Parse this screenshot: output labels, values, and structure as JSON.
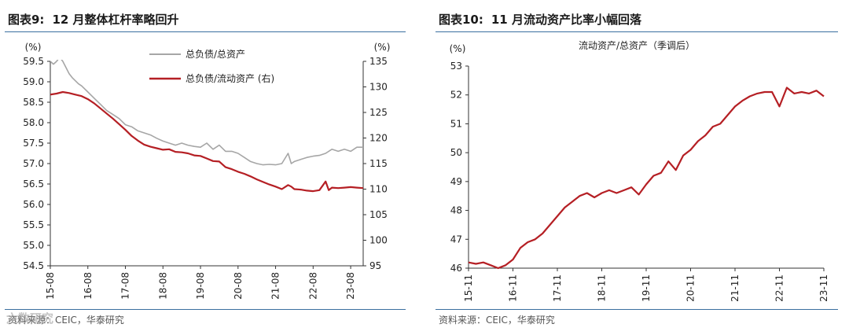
{
  "left": {
    "fig_label": "图表9:",
    "fig_title": "12 月整体杠杆率略回升",
    "source": "资料来源：CEIC，华泰研究",
    "watermark": "六数研究"
  },
  "right": {
    "fig_label": "图表10:",
    "fig_title": "11 月流动资产比率小幅回落",
    "source": "资料来源：CEIC，华泰研究"
  },
  "chart_data": [
    {
      "type": "line",
      "title": "",
      "left_unit": "(%)",
      "right_unit": "(%)",
      "x_ticks": [
        "15-08",
        "16-08",
        "17-08",
        "18-08",
        "19-08",
        "20-08",
        "21-08",
        "22-08",
        "23-08"
      ],
      "ylim_left": [
        54.5,
        59.5
      ],
      "yticks_left": [
        54.5,
        55.0,
        55.5,
        56.0,
        56.5,
        57.0,
        57.5,
        58.0,
        58.5,
        59.0,
        59.5
      ],
      "ylim_right": [
        95,
        135
      ],
      "yticks_right": [
        95,
        100,
        105,
        110,
        115,
        120,
        125,
        130,
        135
      ],
      "legend_position": "top-center",
      "series": [
        {
          "name": "总负债/总资产",
          "axis": "left",
          "color": "#a6a6a6",
          "x": [
            "2015-08",
            "2015-09",
            "2015-10",
            "2015-11",
            "2015-12",
            "2016-02",
            "2016-03",
            "2016-05",
            "2016-06",
            "2016-08",
            "2016-10",
            "2016-12",
            "2017-02",
            "2017-04",
            "2017-06",
            "2017-08",
            "2017-10",
            "2017-12",
            "2018-02",
            "2018-04",
            "2018-06",
            "2018-08",
            "2018-10",
            "2018-12",
            "2019-02",
            "2019-04",
            "2019-06",
            "2019-08",
            "2019-10",
            "2019-12",
            "2020-02",
            "2020-04",
            "2020-06",
            "2020-08",
            "2020-10",
            "2020-12",
            "2021-02",
            "2021-04",
            "2021-06",
            "2021-08",
            "2021-10",
            "2021-12",
            "2022-01",
            "2022-02",
            "2022-04",
            "2022-06",
            "2022-08",
            "2022-10",
            "2022-12",
            "2023-02",
            "2023-04",
            "2023-06",
            "2023-08",
            "2023-10",
            "2023-12"
          ],
          "values": [
            59.5,
            59.43,
            59.5,
            59.6,
            59.5,
            59.2,
            59.1,
            58.95,
            58.9,
            58.75,
            58.6,
            58.45,
            58.3,
            58.2,
            58.1,
            57.95,
            57.9,
            57.8,
            57.75,
            57.7,
            57.62,
            57.55,
            57.5,
            57.45,
            57.5,
            57.45,
            57.42,
            57.4,
            57.5,
            57.35,
            57.45,
            57.3,
            57.3,
            57.25,
            57.15,
            57.05,
            57.0,
            56.97,
            56.98,
            56.97,
            57.0,
            57.25,
            57.0,
            57.05,
            57.1,
            57.15,
            57.18,
            57.2,
            57.25,
            57.35,
            57.3,
            57.35,
            57.3,
            57.4,
            57.4
          ]
        },
        {
          "name": "总负债/流动资产 (右)",
          "axis": "right",
          "color": "#b51f24",
          "x": [
            "2015-08",
            "2015-10",
            "2015-12",
            "2016-02",
            "2016-04",
            "2016-06",
            "2016-08",
            "2016-10",
            "2016-12",
            "2017-02",
            "2017-04",
            "2017-06",
            "2017-08",
            "2017-10",
            "2017-12",
            "2018-02",
            "2018-04",
            "2018-06",
            "2018-08",
            "2018-10",
            "2018-12",
            "2019-02",
            "2019-04",
            "2019-06",
            "2019-08",
            "2019-10",
            "2019-12",
            "2020-02",
            "2020-04",
            "2020-06",
            "2020-08",
            "2020-10",
            "2020-12",
            "2021-02",
            "2021-04",
            "2021-06",
            "2021-08",
            "2021-10",
            "2021-12",
            "2022-01",
            "2022-02",
            "2022-04",
            "2022-06",
            "2022-08",
            "2022-10",
            "2022-12",
            "2023-01",
            "2023-02",
            "2023-04",
            "2023-06",
            "2023-08",
            "2023-10",
            "2023-12"
          ],
          "values": [
            128.5,
            128.7,
            129.0,
            128.8,
            128.5,
            128.2,
            127.6,
            126.8,
            125.8,
            124.8,
            123.8,
            122.7,
            121.6,
            120.4,
            119.5,
            118.7,
            118.3,
            118.0,
            117.7,
            117.8,
            117.3,
            117.2,
            117.0,
            116.6,
            116.5,
            116.0,
            115.5,
            115.4,
            114.3,
            113.9,
            113.4,
            113.0,
            112.5,
            111.9,
            111.4,
            110.9,
            110.5,
            110.0,
            110.8,
            110.5,
            110.0,
            109.9,
            109.7,
            109.6,
            109.8,
            111.5,
            109.8,
            110.3,
            110.2,
            110.3,
            110.4,
            110.3,
            110.2
          ]
        }
      ]
    },
    {
      "type": "line",
      "title": "流动资产/总资产（季调后）",
      "y_unit": "(%)",
      "x_ticks": [
        "15-11",
        "16-11",
        "17-11",
        "18-11",
        "19-11",
        "20-11",
        "21-11",
        "22-11",
        "23-11"
      ],
      "ylim": [
        46,
        53
      ],
      "yticks": [
        46,
        47,
        48,
        49,
        50,
        51,
        52,
        53
      ],
      "series": [
        {
          "name": "",
          "color": "#b51f24",
          "x": [
            "2015-11",
            "2016-01",
            "2016-03",
            "2016-05",
            "2016-07",
            "2016-09",
            "2016-11",
            "2017-01",
            "2017-03",
            "2017-05",
            "2017-07",
            "2017-09",
            "2017-11",
            "2018-01",
            "2018-03",
            "2018-05",
            "2018-07",
            "2018-09",
            "2018-11",
            "2019-01",
            "2019-03",
            "2019-05",
            "2019-07",
            "2019-09",
            "2019-11",
            "2020-01",
            "2020-03",
            "2020-05",
            "2020-07",
            "2020-09",
            "2020-11",
            "2021-01",
            "2021-03",
            "2021-05",
            "2021-07",
            "2021-09",
            "2021-11",
            "2022-01",
            "2022-03",
            "2022-05",
            "2022-07",
            "2022-09",
            "2022-11",
            "2023-01",
            "2023-03",
            "2023-05",
            "2023-07",
            "2023-09",
            "2023-11"
          ],
          "values": [
            46.2,
            46.15,
            46.2,
            46.1,
            46.0,
            46.1,
            46.3,
            46.7,
            46.9,
            47.0,
            47.2,
            47.5,
            47.8,
            48.1,
            48.3,
            48.5,
            48.6,
            48.45,
            48.6,
            48.7,
            48.6,
            48.7,
            48.8,
            48.55,
            48.9,
            49.2,
            49.3,
            49.7,
            49.4,
            49.9,
            50.1,
            50.4,
            50.6,
            50.9,
            51.0,
            51.3,
            51.6,
            51.8,
            51.95,
            52.05,
            52.1,
            52.1,
            51.6,
            52.25,
            52.05,
            52.1,
            52.05,
            52.15,
            51.95
          ]
        }
      ]
    }
  ]
}
